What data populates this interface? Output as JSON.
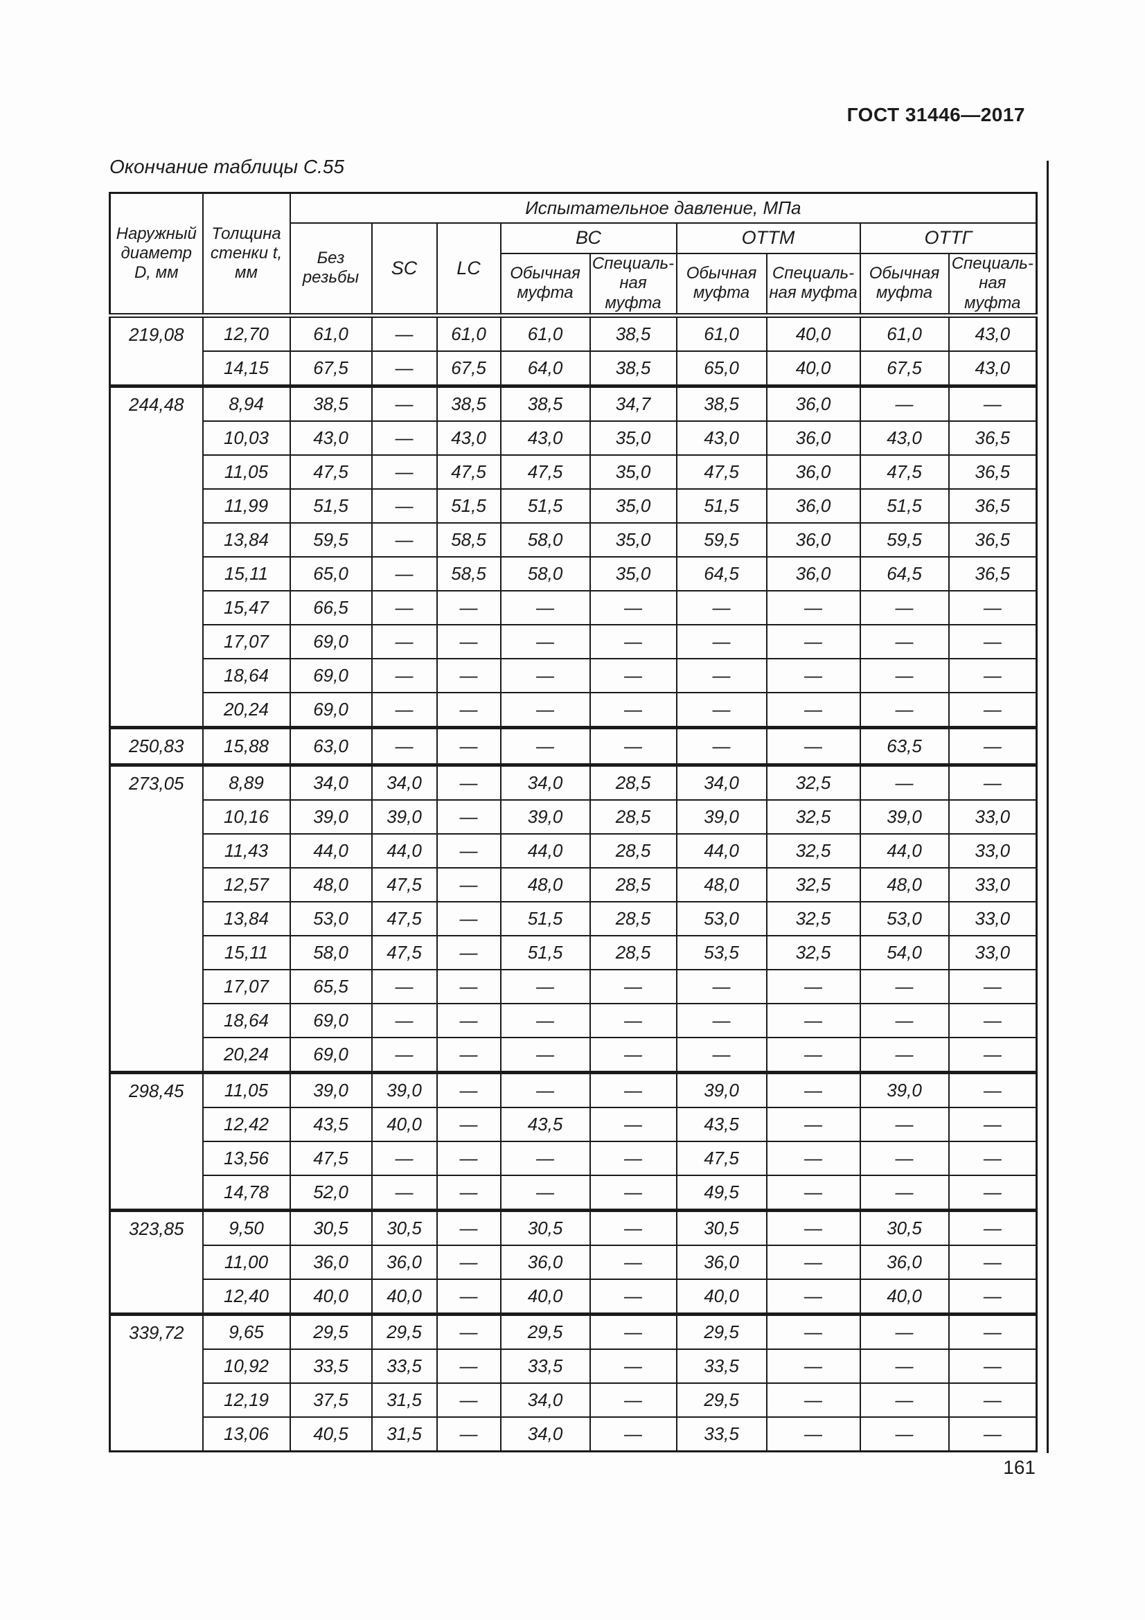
{
  "page": {
    "standard": "ГОСТ 31446—2017",
    "page_number": "161"
  },
  "table": {
    "caption": "Окончание таблицы С.55",
    "header": {
      "outer_diameter": "Наружный диаметр D, мм",
      "wall_thickness": "Толщина стенки t, мм",
      "pressure_title": "Испытательное давление, МПа",
      "no_thread": "Без резьбы",
      "sc": "SC",
      "lc": "LC",
      "bc": "ВС",
      "ottm": "ОТТМ",
      "ottg": "ОТТГ",
      "regular_coupling": "Обычная муфта",
      "special_coupling": "Специаль-\nная муфта"
    },
    "dash": "—",
    "groups": [
      {
        "d": "219,08",
        "rows": [
          [
            "12,70",
            "61,0",
            "—",
            "61,0",
            "61,0",
            "38,5",
            "61,0",
            "40,0",
            "61,0",
            "43,0"
          ],
          [
            "14,15",
            "67,5",
            "—",
            "67,5",
            "64,0",
            "38,5",
            "65,0",
            "40,0",
            "67,5",
            "43,0"
          ]
        ]
      },
      {
        "d": "244,48",
        "rows": [
          [
            "8,94",
            "38,5",
            "—",
            "38,5",
            "38,5",
            "34,7",
            "38,5",
            "36,0",
            "—",
            "—"
          ],
          [
            "10,03",
            "43,0",
            "—",
            "43,0",
            "43,0",
            "35,0",
            "43,0",
            "36,0",
            "43,0",
            "36,5"
          ],
          [
            "11,05",
            "47,5",
            "—",
            "47,5",
            "47,5",
            "35,0",
            "47,5",
            "36,0",
            "47,5",
            "36,5"
          ],
          [
            "11,99",
            "51,5",
            "—",
            "51,5",
            "51,5",
            "35,0",
            "51,5",
            "36,0",
            "51,5",
            "36,5"
          ],
          [
            "13,84",
            "59,5",
            "—",
            "58,5",
            "58,0",
            "35,0",
            "59,5",
            "36,0",
            "59,5",
            "36,5"
          ],
          [
            "15,11",
            "65,0",
            "—",
            "58,5",
            "58,0",
            "35,0",
            "64,5",
            "36,0",
            "64,5",
            "36,5"
          ],
          [
            "15,47",
            "66,5",
            "—",
            "—",
            "—",
            "—",
            "—",
            "—",
            "—",
            "—"
          ],
          [
            "17,07",
            "69,0",
            "—",
            "—",
            "—",
            "—",
            "—",
            "—",
            "—",
            "—"
          ],
          [
            "18,64",
            "69,0",
            "—",
            "—",
            "—",
            "—",
            "—",
            "—",
            "—",
            "—"
          ],
          [
            "20,24",
            "69,0",
            "—",
            "—",
            "—",
            "—",
            "—",
            "—",
            "—",
            "—"
          ]
        ]
      },
      {
        "d": "250,83",
        "rows": [
          [
            "15,88",
            "63,0",
            "—",
            "—",
            "—",
            "—",
            "—",
            "—",
            "63,5",
            "—"
          ]
        ]
      },
      {
        "d": "273,05",
        "rows": [
          [
            "8,89",
            "34,0",
            "34,0",
            "—",
            "34,0",
            "28,5",
            "34,0",
            "32,5",
            "—",
            "—"
          ],
          [
            "10,16",
            "39,0",
            "39,0",
            "—",
            "39,0",
            "28,5",
            "39,0",
            "32,5",
            "39,0",
            "33,0"
          ],
          [
            "11,43",
            "44,0",
            "44,0",
            "—",
            "44,0",
            "28,5",
            "44,0",
            "32,5",
            "44,0",
            "33,0"
          ],
          [
            "12,57",
            "48,0",
            "47,5",
            "—",
            "48,0",
            "28,5",
            "48,0",
            "32,5",
            "48,0",
            "33,0"
          ],
          [
            "13,84",
            "53,0",
            "47,5",
            "—",
            "51,5",
            "28,5",
            "53,0",
            "32,5",
            "53,0",
            "33,0"
          ],
          [
            "15,11",
            "58,0",
            "47,5",
            "—",
            "51,5",
            "28,5",
            "53,5",
            "32,5",
            "54,0",
            "33,0"
          ],
          [
            "17,07",
            "65,5",
            "—",
            "—",
            "—",
            "—",
            "—",
            "—",
            "—",
            "—"
          ],
          [
            "18,64",
            "69,0",
            "—",
            "—",
            "—",
            "—",
            "—",
            "—",
            "—",
            "—"
          ],
          [
            "20,24",
            "69,0",
            "—",
            "—",
            "—",
            "—",
            "—",
            "—",
            "—",
            "—"
          ]
        ]
      },
      {
        "d": "298,45",
        "rows": [
          [
            "11,05",
            "39,0",
            "39,0",
            "—",
            "—",
            "—",
            "39,0",
            "—",
            "39,0",
            "—"
          ],
          [
            "12,42",
            "43,5",
            "40,0",
            "—",
            "43,5",
            "—",
            "43,5",
            "—",
            "—",
            "—"
          ],
          [
            "13,56",
            "47,5",
            "—",
            "—",
            "—",
            "—",
            "47,5",
            "—",
            "—",
            "—"
          ],
          [
            "14,78",
            "52,0",
            "—",
            "—",
            "—",
            "—",
            "49,5",
            "—",
            "—",
            "—"
          ]
        ]
      },
      {
        "d": "323,85",
        "rows": [
          [
            "9,50",
            "30,5",
            "30,5",
            "—",
            "30,5",
            "—",
            "30,5",
            "—",
            "30,5",
            "—"
          ],
          [
            "11,00",
            "36,0",
            "36,0",
            "—",
            "36,0",
            "—",
            "36,0",
            "—",
            "36,0",
            "—"
          ],
          [
            "12,40",
            "40,0",
            "40,0",
            "—",
            "40,0",
            "—",
            "40,0",
            "—",
            "40,0",
            "—"
          ]
        ]
      },
      {
        "d": "339,72",
        "rows": [
          [
            "9,65",
            "29,5",
            "29,5",
            "—",
            "29,5",
            "—",
            "29,5",
            "—",
            "—",
            "—"
          ],
          [
            "10,92",
            "33,5",
            "33,5",
            "—",
            "33,5",
            "—",
            "33,5",
            "—",
            "—",
            "—"
          ],
          [
            "12,19",
            "37,5",
            "31,5",
            "—",
            "34,0",
            "—",
            "29,5",
            "—",
            "—",
            "—"
          ],
          [
            "13,06",
            "40,5",
            "31,5",
            "—",
            "34,0",
            "—",
            "33,5",
            "—",
            "—",
            "—"
          ]
        ]
      }
    ]
  }
}
